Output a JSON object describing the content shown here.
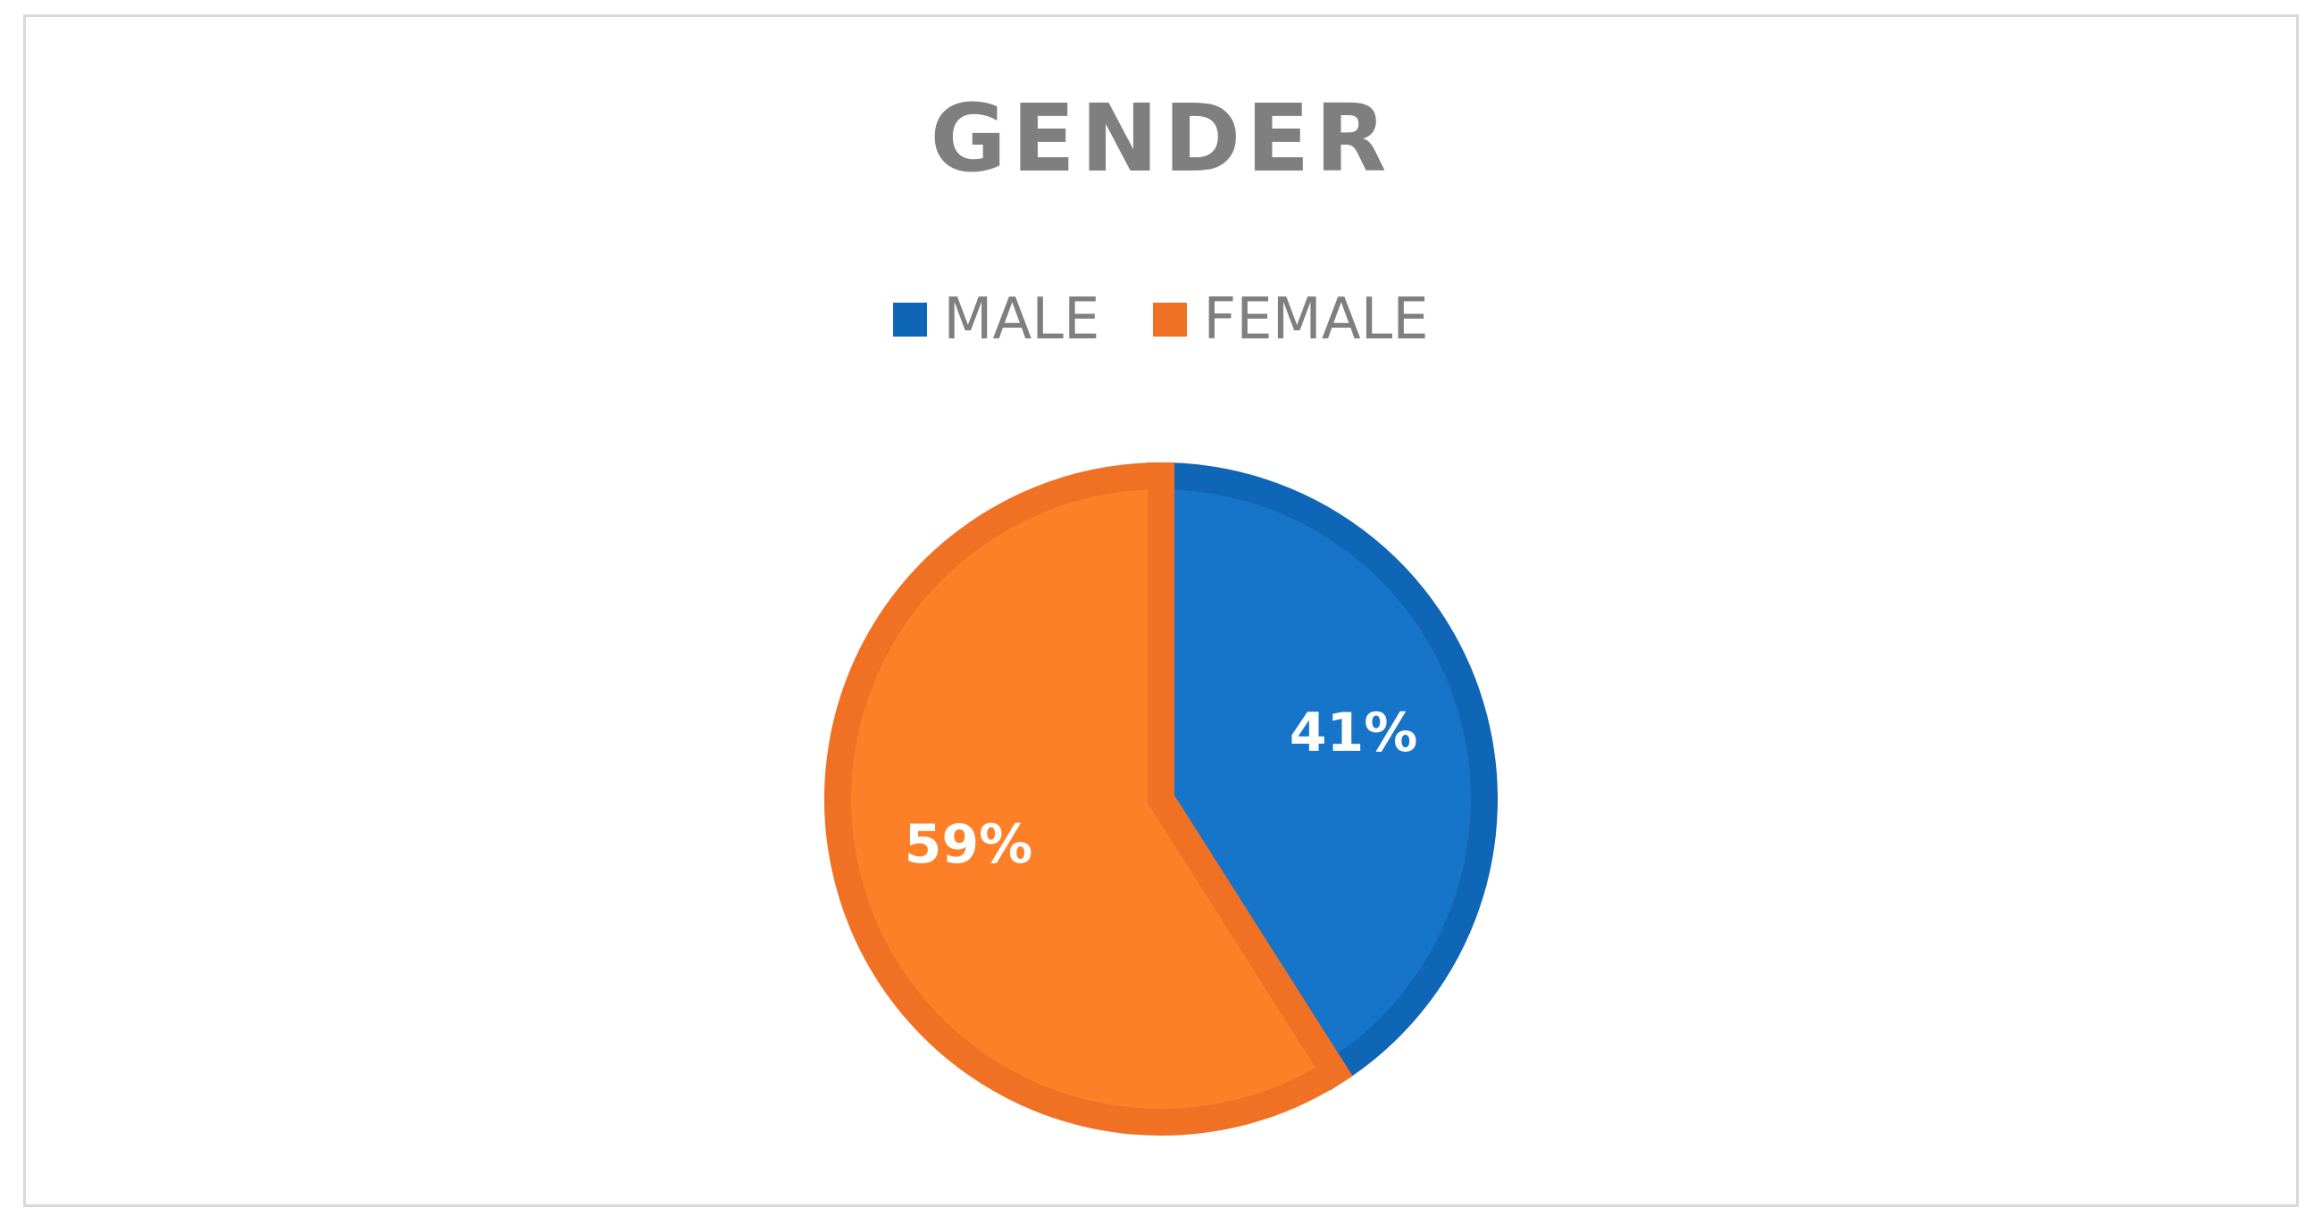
{
  "chart_data": {
    "type": "pie",
    "title": "GENDER",
    "categories": [
      "MALE",
      "FEMALE"
    ],
    "values": [
      41,
      59
    ],
    "data_labels": [
      "41%",
      "59%"
    ],
    "colors": {
      "MALE": "#1674c9",
      "FEMALE": "#fd7f27"
    },
    "border_colors": {
      "MALE": "#0f65b6",
      "FEMALE": "#f07024"
    },
    "legend_position": "top"
  }
}
